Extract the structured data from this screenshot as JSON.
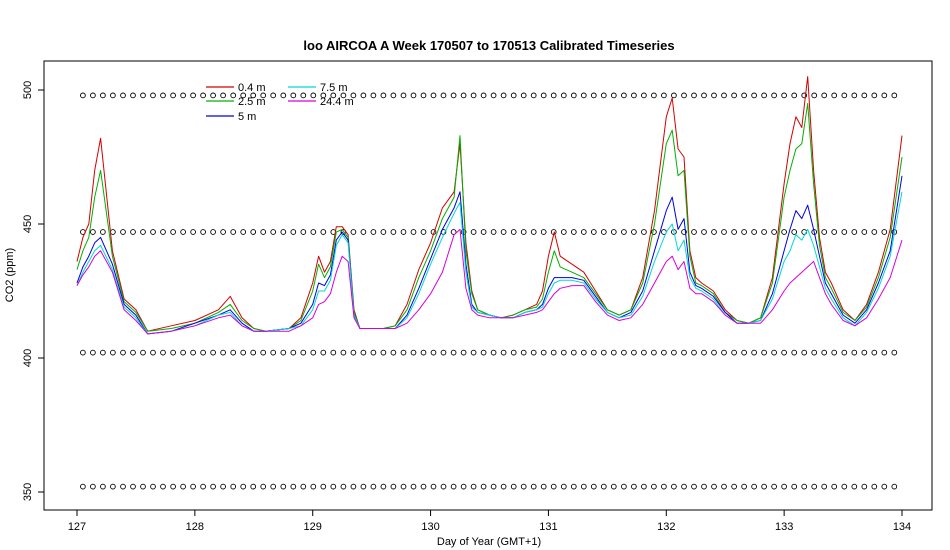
{
  "chart_data": {
    "type": "line",
    "title": "loo AIRCOA A  Week 170507 to 170513  Calibrated Timeseries",
    "xlabel": "Day of Year (GMT+1)",
    "ylabel": "CO2 (ppm)",
    "xlim": [
      127,
      134
    ],
    "ylim": [
      350,
      500
    ],
    "xticks": [
      127,
      128,
      129,
      130,
      131,
      132,
      133,
      134
    ],
    "yticks": [
      350,
      400,
      450,
      500
    ],
    "grid": false,
    "legend_position": "top-left",
    "series": [
      {
        "name": "0.4 m",
        "color": "#d40000",
        "x": [
          127.0,
          127.05,
          127.1,
          127.15,
          127.2,
          127.3,
          127.4,
          127.5,
          127.6,
          127.8,
          128.0,
          128.2,
          128.3,
          128.4,
          128.5,
          128.6,
          128.8,
          128.9,
          129.0,
          129.05,
          129.1,
          129.15,
          129.2,
          129.25,
          129.3,
          129.35,
          129.4,
          129.5,
          129.6,
          129.7,
          129.8,
          129.9,
          130.0,
          130.1,
          130.2,
          130.25,
          130.3,
          130.35,
          130.4,
          130.5,
          130.6,
          130.7,
          130.8,
          130.9,
          130.95,
          131.0,
          131.05,
          131.1,
          131.2,
          131.3,
          131.4,
          131.5,
          131.6,
          131.7,
          131.8,
          131.9,
          132.0,
          132.05,
          132.1,
          132.15,
          132.2,
          132.25,
          132.3,
          132.4,
          132.5,
          132.6,
          132.7,
          132.8,
          132.9,
          133.0,
          133.05,
          133.1,
          133.15,
          133.2,
          133.25,
          133.3,
          133.35,
          133.4,
          133.5,
          133.6,
          133.7,
          133.8,
          133.9,
          134.0
        ],
        "y": [
          436,
          445,
          450,
          470,
          482,
          440,
          422,
          418,
          410,
          412,
          414,
          418,
          423,
          415,
          411,
          410,
          411,
          415,
          428,
          438,
          432,
          436,
          449,
          449,
          446,
          418,
          411,
          411,
          411,
          412,
          420,
          433,
          443,
          456,
          462,
          480,
          443,
          425,
          418,
          416,
          415,
          416,
          418,
          420,
          425,
          438,
          447,
          438,
          435,
          432,
          425,
          418,
          416,
          418,
          430,
          455,
          490,
          497,
          478,
          475,
          440,
          430,
          428,
          425,
          418,
          414,
          413,
          415,
          430,
          465,
          480,
          490,
          486,
          505,
          470,
          445,
          432,
          428,
          418,
          414,
          420,
          432,
          448,
          483
        ]
      },
      {
        "name": "2.5 m",
        "color": "#00b000",
        "x": [
          127.0,
          127.05,
          127.1,
          127.15,
          127.2,
          127.3,
          127.4,
          127.5,
          127.6,
          127.8,
          128.0,
          128.2,
          128.3,
          128.4,
          128.5,
          128.6,
          128.8,
          128.9,
          129.0,
          129.05,
          129.1,
          129.15,
          129.2,
          129.25,
          129.3,
          129.35,
          129.4,
          129.5,
          129.6,
          129.7,
          129.8,
          129.9,
          130.0,
          130.1,
          130.2,
          130.25,
          130.3,
          130.35,
          130.4,
          130.5,
          130.6,
          130.7,
          130.8,
          130.9,
          130.95,
          131.0,
          131.05,
          131.1,
          131.2,
          131.3,
          131.4,
          131.5,
          131.6,
          131.7,
          131.8,
          131.9,
          132.0,
          132.05,
          132.1,
          132.15,
          132.2,
          132.25,
          132.3,
          132.4,
          132.5,
          132.6,
          132.7,
          132.8,
          132.9,
          133.0,
          133.05,
          133.1,
          133.15,
          133.2,
          133.25,
          133.3,
          133.35,
          133.4,
          133.5,
          133.6,
          133.7,
          133.8,
          133.9,
          134.0
        ],
        "y": [
          433,
          440,
          445,
          460,
          470,
          438,
          421,
          417,
          410,
          411,
          413,
          417,
          420,
          414,
          411,
          410,
          411,
          414,
          425,
          435,
          430,
          434,
          447,
          448,
          445,
          417,
          411,
          411,
          411,
          412,
          418,
          430,
          440,
          452,
          460,
          483,
          440,
          424,
          418,
          416,
          415,
          416,
          418,
          419,
          422,
          432,
          440,
          434,
          432,
          430,
          424,
          418,
          416,
          418,
          428,
          450,
          480,
          485,
          468,
          470,
          438,
          428,
          427,
          424,
          417,
          414,
          413,
          415,
          428,
          460,
          470,
          478,
          480,
          495,
          465,
          442,
          430,
          426,
          417,
          414,
          419,
          430,
          445,
          475
        ]
      },
      {
        "name": "5 m",
        "color": "#0000e0",
        "x": [
          127.0,
          127.05,
          127.1,
          127.15,
          127.2,
          127.3,
          127.4,
          127.5,
          127.6,
          127.8,
          128.0,
          128.2,
          128.3,
          128.4,
          128.5,
          128.6,
          128.8,
          128.9,
          129.0,
          129.05,
          129.1,
          129.15,
          129.2,
          129.25,
          129.3,
          129.35,
          129.4,
          129.5,
          129.6,
          129.7,
          129.8,
          129.9,
          130.0,
          130.1,
          130.2,
          130.25,
          130.3,
          130.35,
          130.4,
          130.5,
          130.6,
          130.7,
          130.8,
          130.9,
          130.95,
          131.0,
          131.05,
          131.1,
          131.2,
          131.3,
          131.4,
          131.5,
          131.6,
          131.7,
          131.8,
          131.9,
          132.0,
          132.05,
          132.1,
          132.15,
          132.2,
          132.25,
          132.3,
          132.4,
          132.5,
          132.6,
          132.7,
          132.8,
          132.9,
          133.0,
          133.05,
          133.1,
          133.15,
          133.2,
          133.25,
          133.3,
          133.35,
          133.4,
          133.5,
          133.6,
          133.7,
          133.8,
          133.9,
          134.0
        ],
        "y": [
          428,
          434,
          438,
          443,
          445,
          435,
          420,
          416,
          409,
          410,
          413,
          416,
          418,
          413,
          410,
          410,
          411,
          413,
          420,
          428,
          427,
          431,
          444,
          447,
          444,
          416,
          411,
          411,
          411,
          411,
          416,
          426,
          437,
          448,
          456,
          462,
          435,
          420,
          417,
          416,
          415,
          415,
          417,
          418,
          420,
          426,
          430,
          430,
          430,
          429,
          423,
          417,
          415,
          417,
          425,
          440,
          455,
          460,
          448,
          452,
          432,
          427,
          426,
          423,
          417,
          413,
          413,
          414,
          424,
          440,
          448,
          455,
          452,
          457,
          448,
          438,
          428,
          424,
          416,
          413,
          418,
          428,
          440,
          468
        ]
      },
      {
        "name": "7.5 m",
        "color": "#00d8d8",
        "x": [
          127.0,
          127.05,
          127.1,
          127.15,
          127.2,
          127.3,
          127.4,
          127.5,
          127.6,
          127.8,
          128.0,
          128.2,
          128.3,
          128.4,
          128.5,
          128.6,
          128.8,
          128.9,
          129.0,
          129.05,
          129.1,
          129.15,
          129.2,
          129.25,
          129.3,
          129.35,
          129.4,
          129.5,
          129.6,
          129.7,
          129.8,
          129.9,
          130.0,
          130.1,
          130.2,
          130.25,
          130.3,
          130.35,
          130.4,
          130.5,
          130.6,
          130.7,
          130.8,
          130.9,
          130.95,
          131.0,
          131.05,
          131.1,
          131.2,
          131.3,
          131.4,
          131.5,
          131.6,
          131.7,
          131.8,
          131.9,
          132.0,
          132.05,
          132.1,
          132.15,
          132.2,
          132.25,
          132.3,
          132.4,
          132.5,
          132.6,
          132.7,
          132.8,
          132.9,
          133.0,
          133.05,
          133.1,
          133.15,
          133.2,
          133.25,
          133.3,
          133.35,
          133.4,
          133.5,
          133.6,
          133.7,
          133.8,
          133.9,
          134.0
        ],
        "y": [
          427,
          432,
          436,
          440,
          442,
          433,
          419,
          415,
          409,
          410,
          412,
          416,
          417,
          412,
          410,
          410,
          411,
          412,
          418,
          425,
          425,
          429,
          442,
          446,
          443,
          416,
          411,
          411,
          411,
          411,
          415,
          424,
          435,
          445,
          454,
          458,
          432,
          419,
          417,
          416,
          415,
          415,
          417,
          418,
          419,
          424,
          428,
          429,
          429,
          428,
          422,
          417,
          415,
          416,
          423,
          436,
          447,
          450,
          440,
          444,
          430,
          426,
          425,
          422,
          416,
          413,
          413,
          414,
          422,
          436,
          440,
          446,
          444,
          448,
          442,
          434,
          426,
          422,
          415,
          412,
          417,
          426,
          438,
          462
        ]
      },
      {
        "name": "24.4 m",
        "color": "#d800d8",
        "x": [
          127.0,
          127.05,
          127.1,
          127.15,
          127.2,
          127.3,
          127.4,
          127.5,
          127.6,
          127.8,
          128.0,
          128.2,
          128.3,
          128.4,
          128.5,
          128.6,
          128.8,
          128.9,
          129.0,
          129.05,
          129.1,
          129.15,
          129.2,
          129.25,
          129.3,
          129.35,
          129.4,
          129.5,
          129.6,
          129.7,
          129.8,
          129.9,
          130.0,
          130.1,
          130.2,
          130.25,
          130.3,
          130.35,
          130.4,
          130.5,
          130.6,
          130.7,
          130.8,
          130.9,
          130.95,
          131.0,
          131.05,
          131.1,
          131.2,
          131.3,
          131.4,
          131.5,
          131.6,
          131.7,
          131.8,
          131.9,
          132.0,
          132.05,
          132.1,
          132.15,
          132.2,
          132.25,
          132.3,
          132.4,
          132.5,
          132.6,
          132.7,
          132.8,
          132.9,
          133.0,
          133.05,
          133.1,
          133.15,
          133.2,
          133.25,
          133.3,
          133.35,
          133.4,
          133.5,
          133.6,
          133.7,
          133.8,
          133.9,
          134.0
        ],
        "y": [
          427,
          431,
          434,
          438,
          440,
          432,
          418,
          414,
          409,
          410,
          412,
          415,
          416,
          412,
          410,
          410,
          410,
          412,
          415,
          420,
          421,
          424,
          432,
          438,
          436,
          415,
          411,
          411,
          411,
          411,
          413,
          418,
          424,
          432,
          446,
          448,
          426,
          418,
          416,
          415,
          415,
          415,
          416,
          417,
          418,
          421,
          424,
          426,
          427,
          427,
          421,
          416,
          414,
          415,
          420,
          428,
          436,
          438,
          433,
          436,
          426,
          424,
          424,
          421,
          416,
          413,
          413,
          413,
          418,
          425,
          428,
          430,
          432,
          434,
          436,
          430,
          424,
          420,
          414,
          412,
          415,
          422,
          430,
          444
        ]
      }
    ],
    "calibration_markers": {
      "levels": [
        352,
        402,
        447,
        498
      ],
      "x_start": 127.05,
      "x_end": 134.0,
      "step": 0.085
    }
  }
}
